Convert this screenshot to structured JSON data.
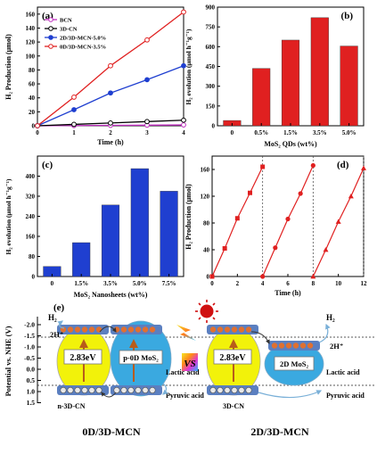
{
  "chart_data": [
    {
      "panel": "(a)",
      "type": "line",
      "x": [
        0,
        1,
        2,
        3,
        4
      ],
      "series": [
        {
          "name": "BCN",
          "color": "#c030c0",
          "values": [
            0,
            0.3,
            0.6,
            0.9,
            1.2
          ]
        },
        {
          "name": "3D-CN",
          "color": "#000000",
          "values": [
            0,
            2,
            4,
            6,
            8
          ]
        },
        {
          "name": "2D/3D-MCN-5.0%",
          "color": "#1f3fd0",
          "values": [
            0,
            23,
            47,
            66,
            86
          ]
        },
        {
          "name": "0D/3D-MCN-3.5%",
          "color": "#e02020",
          "values": [
            0,
            41,
            86,
            123,
            163
          ]
        }
      ],
      "xlabel": "Time (h)",
      "ylabel": "H₂ Production (μmol)",
      "xlim": [
        0,
        4
      ],
      "ylim": [
        0,
        170
      ],
      "xticks": [
        "0",
        "1",
        "2",
        "3",
        "4"
      ],
      "yticks": [
        "0",
        "20",
        "40",
        "60",
        "80",
        "100",
        "120",
        "140",
        "160"
      ],
      "legend": "top-left"
    },
    {
      "panel": "(b)",
      "type": "bar",
      "color": "#e02020",
      "categories": [
        "0",
        "0.5%",
        "1.5%",
        "3.5%",
        "5.0%"
      ],
      "values": [
        40,
        435,
        650,
        820,
        605
      ],
      "xlabel": "MoS₂ QDs (wt%)",
      "ylabel": "H₂ evolution (μmol h⁻¹g⁻¹)",
      "ylim": [
        0,
        900
      ],
      "yticks": [
        "0",
        "150",
        "300",
        "450",
        "600",
        "750",
        "900"
      ]
    },
    {
      "panel": "(c)",
      "type": "bar",
      "color": "#1f3fd0",
      "categories": [
        "0",
        "1.5%",
        "3.5%",
        "5.0%",
        "7.5%"
      ],
      "values": [
        40,
        135,
        285,
        430,
        340
      ],
      "xlabel": "MoS₂ Nanosheets (wt%)",
      "ylabel": "H₂ evolution (μmol h⁻¹g⁻¹)",
      "ylim": [
        0,
        480
      ],
      "yticks": [
        "0",
        "80",
        "160",
        "240",
        "320",
        "400"
      ]
    },
    {
      "panel": "(d)",
      "type": "line",
      "series": [
        {
          "name": "",
          "color": "#e02020",
          "marker": "square",
          "x": [
            0,
            1,
            2,
            3,
            4
          ],
          "values": [
            0,
            42,
            87,
            125,
            164
          ]
        },
        {
          "name": "",
          "color": "#e02020",
          "marker": "circle",
          "x": [
            4,
            5,
            6,
            7,
            8
          ],
          "values": [
            0,
            43,
            86,
            124,
            166
          ]
        },
        {
          "name": "",
          "color": "#e02020",
          "marker": "triangle",
          "x": [
            8,
            9,
            10,
            11,
            12
          ],
          "values": [
            0,
            40,
            82,
            120,
            162
          ]
        }
      ],
      "xlabel": "Time (h)",
      "ylabel": "H₂ Production (μmol)",
      "xlim": [
        0,
        12
      ],
      "ylim": [
        0,
        180
      ],
      "xticks": [
        "0",
        "2",
        "4",
        "6",
        "8",
        "10",
        "12"
      ],
      "yticks": [
        "0",
        "40",
        "80",
        "120",
        "160"
      ],
      "vlines": [
        4,
        8,
        12
      ]
    }
  ],
  "diagram": {
    "panel": "(e)",
    "ylabel": "Potential vs. NHE (V)",
    "yticks": [
      "-2.0",
      "-1.5",
      "-1.0",
      "-0.5",
      "0.0",
      "0.5",
      "1.0",
      "1.5"
    ],
    "left": {
      "gap": "2.83eV",
      "cocatalyst": "p-0D MoS₂",
      "material": "n-3D-CN",
      "h2": "H₂",
      "hplus": "2H⁺",
      "lactic": "Lactic acid",
      "pyruvic": "Pyruvic acid",
      "title": "0D/3D-MCN"
    },
    "vs": "VS",
    "right": {
      "gap": "2.83eV",
      "cocatalyst": "2D MoS₂",
      "material": "3D-CN",
      "h2": "H₂",
      "hplus": "2H⁺",
      "lactic": "Lactic acid",
      "pyruvic": "Pyruvic acid",
      "title": "2D/3D-MCN"
    },
    "colors": {
      "semiconductor": "#f2f20a",
      "mos2": "#3aa9e0",
      "arrow": "#b85c1a",
      "sun": "#d01010"
    }
  }
}
